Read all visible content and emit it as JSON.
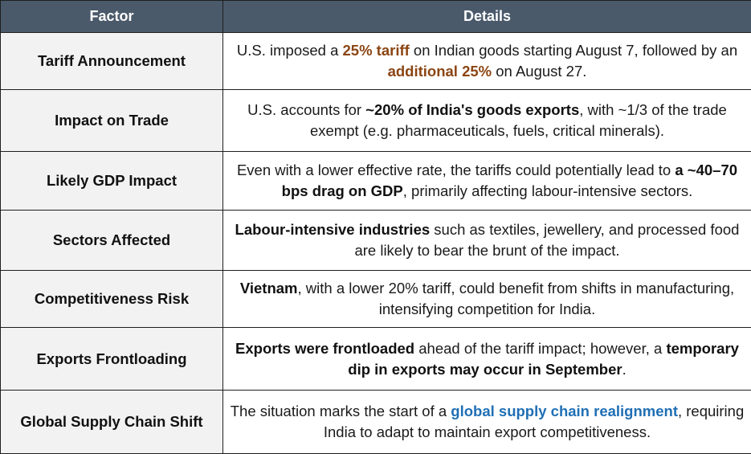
{
  "table": {
    "headers": {
      "factor": "Factor",
      "details": "Details"
    },
    "rows": [
      {
        "factor": "Tariff Announcement",
        "details": {
          "p1": "U.S. imposed a ",
          "h1": "25% tariff",
          "p2": " on Indian goods starting August 7, followed by an ",
          "h2": "additional 25%",
          "p3": " on August 27."
        }
      },
      {
        "factor": "Impact on Trade",
        "details": {
          "p1": "U.S. accounts for ",
          "b1": "~20% of India's goods exports",
          "p2": ", with ~1/3 of the trade exempt (e.g. pharmaceuticals, fuels, critical minerals)."
        }
      },
      {
        "factor": "Likely GDP Impact",
        "details": {
          "p1": "Even with a lower effective rate, the tariffs could potentially lead to ",
          "b1": "a ~40–70 bps drag on GDP",
          "p2": ", primarily affecting labour-intensive sectors."
        }
      },
      {
        "factor": "Sectors Affected",
        "details": {
          "b1": "Labour-intensive industries",
          "p1": " such as textiles, jewellery, and processed food are likely to bear the brunt of the impact."
        }
      },
      {
        "factor": "Competitiveness Risk",
        "details": {
          "b1": "Vietnam",
          "p1": ", with a lower 20% tariff, could benefit from shifts in manufacturing, intensifying competition for India."
        }
      },
      {
        "factor": "Exports Frontloading",
        "details": {
          "b1": "Exports were frontloaded",
          "p1": " ahead of the tariff impact; however, a ",
          "b2": "temporary dip in exports may occur in September",
          "p2": "."
        }
      },
      {
        "factor": "Global Supply Chain Shift",
        "details": {
          "p1": "The situation marks the start of a ",
          "h1": "global supply chain realignment",
          "p2": ", requiring India to adapt to maintain export competitiveness."
        }
      }
    ]
  },
  "colors": {
    "header_bg": "#4a5a6b",
    "factor_bg": "#f2f2f2",
    "highlight_brown": "#8b4513",
    "highlight_blue": "#1f6fb5",
    "border": "#1f1f1f"
  }
}
